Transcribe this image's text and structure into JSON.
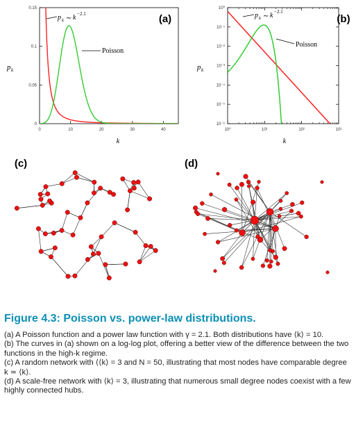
{
  "figure": {
    "title": "Figure 4.3: Poisson vs. power-law distributions.",
    "captions": [
      "(a) A Poisson function and a power law function with γ = 2.1. Both distributions have ⟨k⟩ = 10.",
      "(b) The curves in (a) shown on a log-log plot, offering a better view of the difference between the two functions in the high-k regime.",
      "(c) A random network with ⟨⟨k⟩ = 3 and N = 50, illustrating that most nodes have comparable degree k ≃ ⟨k⟩.",
      "(d) A scale-free network with ⟨k⟩ = 3, illustrating that numerous small degree nodes coexist with a few highly connected hubs."
    ]
  },
  "panel_labels": {
    "a": "(a)",
    "b": "(b)",
    "c": "(c)",
    "d": "(d)"
  },
  "colors": {
    "powerlaw": "#ff2020",
    "poisson": "#33cc33",
    "node": "#ee1111",
    "title": "#0b8fb5"
  },
  "chart_data": [
    {
      "type": "line",
      "panel": "(a)",
      "xlabel": "k",
      "ylabel": "p_k",
      "xlim": [
        0,
        50
      ],
      "ylim": [
        0,
        0.15
      ],
      "xticks": [
        "0",
        "10",
        "20",
        "30",
        "40",
        "50"
      ],
      "yticks": [
        "0",
        "0.05",
        "0.1",
        "0.15"
      ],
      "series": [
        {
          "name": "p_k ~ k^-2.1",
          "color": "#ff2020",
          "function": "powerlaw",
          "gamma": 2.1
        },
        {
          "name": "Poisson",
          "color": "#33cc33",
          "function": "poisson",
          "mean": 10
        }
      ]
    },
    {
      "type": "line",
      "panel": "(b)",
      "xlabel": "k",
      "ylabel": "p_k",
      "xscale": "log",
      "yscale": "log",
      "xlim": [
        1,
        1000
      ],
      "ylim": [
        1e-06,
        1
      ],
      "xticks": [
        "10⁰",
        "10¹",
        "10²",
        "10³"
      ],
      "yticks": [
        "10⁰",
        "10⁻¹",
        "10⁻²",
        "10⁻³",
        "10⁻⁴",
        "10⁻⁵",
        "10⁻⁶"
      ],
      "series": [
        {
          "name": "p_k ~ k^-2.1",
          "color": "#ff2020",
          "function": "powerlaw",
          "gamma": 2.1
        },
        {
          "name": "Poisson",
          "color": "#33cc33",
          "function": "poisson",
          "mean": 10
        }
      ]
    }
  ]
}
